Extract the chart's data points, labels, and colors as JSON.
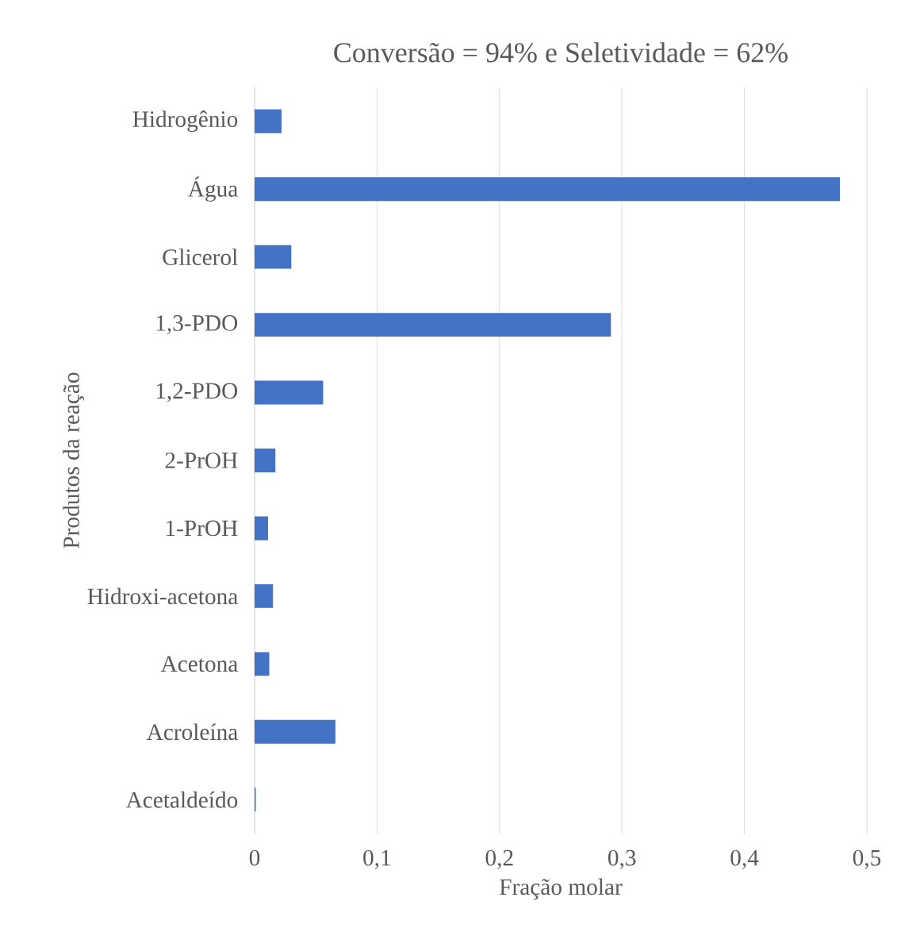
{
  "chart_data": {
    "type": "bar",
    "orientation": "horizontal",
    "title": "Conversão = 94% e Seletividade = 62%",
    "xlabel": "Fração molar",
    "ylabel": "Produtos da reação",
    "categories": [
      "Hidrogênio",
      "Água",
      "Glicerol",
      "1,3-PDO",
      "1,2-PDO",
      "2-PrOH",
      "1-PrOH",
      "Hidroxi-acetona",
      "Acetona",
      "Acroleína",
      "Acetaldeído"
    ],
    "values": [
      0.022,
      0.478,
      0.03,
      0.291,
      0.056,
      0.017,
      0.011,
      0.015,
      0.012,
      0.066,
      0.001
    ],
    "color": "#4472c4",
    "xlim": [
      0,
      0.5
    ],
    "xticks": [
      {
        "value": 0,
        "label": "0"
      },
      {
        "value": 0.1,
        "label": "0,1"
      },
      {
        "value": 0.2,
        "label": "0,2"
      },
      {
        "value": 0.3,
        "label": "0,3"
      },
      {
        "value": 0.4,
        "label": "0,4"
      },
      {
        "value": 0.5,
        "label": "0,5"
      }
    ],
    "grid": "x"
  }
}
